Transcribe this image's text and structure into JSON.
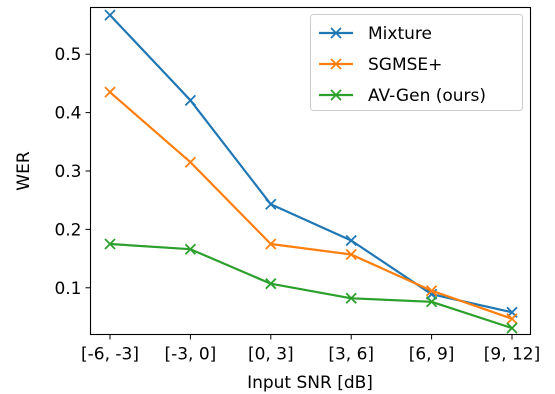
{
  "chart_data": {
    "type": "line",
    "xlabel": "Input SNR [dB]",
    "ylabel": "WER",
    "categories": [
      "[-6, -3]",
      "[-3, 0]",
      "[0, 3]",
      "[3, 6]",
      "[6, 9]",
      "[9, 12]"
    ],
    "yticks": [
      "0.1",
      "0.2",
      "0.3",
      "0.4",
      "0.5"
    ],
    "ylim": [
      0.02,
      0.58
    ],
    "grid": false,
    "legend_position": "top-right",
    "marker": "x",
    "series": [
      {
        "name": "Mixture",
        "color": "#1f77b4",
        "values": [
          0.567,
          0.421,
          0.243,
          0.181,
          0.089,
          0.058
        ]
      },
      {
        "name": "SGMSE+",
        "color": "#ff7f0e",
        "values": [
          0.435,
          0.315,
          0.175,
          0.157,
          0.095,
          0.047
        ]
      },
      {
        "name": "AV-Gen (ours)",
        "color": "#2ca02c",
        "values": [
          0.175,
          0.166,
          0.107,
          0.082,
          0.076,
          0.031
        ]
      }
    ]
  }
}
